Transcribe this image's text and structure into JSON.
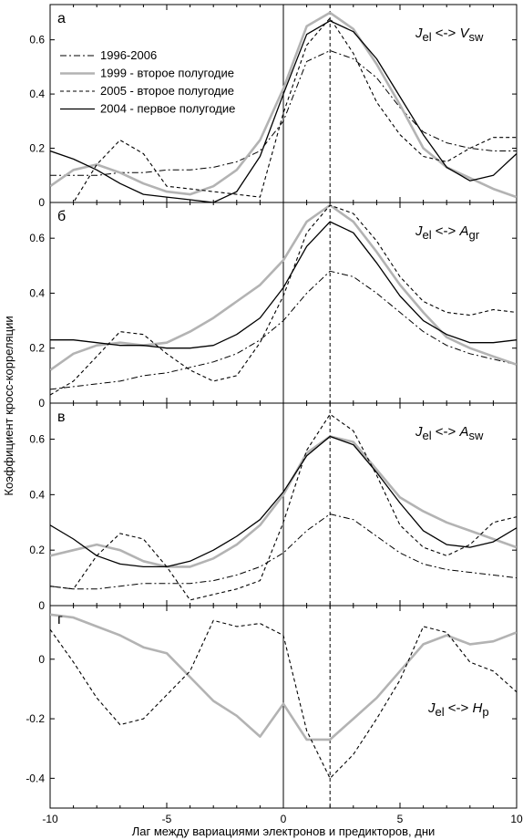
{
  "chart_data": {
    "type": "line",
    "xlabel": "Лаг между вариациями электронов и предикторов, дни",
    "ylabel": "Коэффициент кросс-корреляции",
    "xlim": [
      -10,
      10
    ],
    "x_ticks": [
      -10,
      -5,
      0,
      5,
      10
    ],
    "x_tick_labels": [
      "-10",
      "-5",
      "0",
      "5",
      "10"
    ],
    "vertical_lines": [
      {
        "x": 0,
        "style": "solid"
      },
      {
        "x": 2,
        "style": "dashed"
      }
    ],
    "series_styles": [
      {
        "key": "s1996",
        "stroke": "#000000",
        "width": 1,
        "dash": "7,3,2,3"
      },
      {
        "key": "s1999",
        "stroke": "#b3b3b3",
        "width": 2.6,
        "dash": ""
      },
      {
        "key": "s2005",
        "stroke": "#000000",
        "width": 1.1,
        "dash": "4,3"
      },
      {
        "key": "s2004",
        "stroke": "#000000",
        "width": 1.3,
        "dash": ""
      }
    ],
    "legend": {
      "placement": "upper-left of panel а",
      "entries": [
        {
          "key": "s1996",
          "label": "1996-2006"
        },
        {
          "key": "s1999",
          "label": "1999 - второе полугодие"
        },
        {
          "key": "s2005",
          "label": "2005 - второе полугодие"
        },
        {
          "key": "s2004",
          "label": "2004 - первое полугодие"
        }
      ]
    },
    "panels": [
      {
        "letter": "а",
        "title_prefix": "J",
        "title_sub": "el",
        "title_arrow": " <-> ",
        "title_var": "V",
        "title_var_sub": "sw",
        "ylim": [
          0,
          0.73
        ],
        "y_ticks": [
          0,
          0.2,
          0.4,
          0.6
        ],
        "y_tick_labels": [
          "0",
          "0.2",
          "0.4",
          "0.6"
        ],
        "x": [
          -10,
          -9,
          -8,
          -7,
          -6,
          -5,
          -4,
          -3,
          -2,
          -1,
          0,
          1,
          2,
          3,
          4,
          5,
          6,
          7,
          8,
          9,
          10
        ],
        "series": [
          {
            "key": "s1996",
            "values": [
              0.1,
              0.1,
              0.1,
              0.11,
              0.11,
              0.12,
              0.12,
              0.13,
              0.15,
              0.19,
              0.3,
              0.52,
              0.56,
              0.53,
              0.46,
              0.35,
              0.26,
              0.22,
              0.2,
              0.19,
              0.19
            ]
          },
          {
            "key": "s1999",
            "values": [
              0.06,
              0.12,
              0.14,
              0.11,
              0.07,
              0.04,
              0.03,
              0.06,
              0.12,
              0.23,
              0.42,
              0.65,
              0.7,
              0.64,
              0.51,
              0.36,
              0.2,
              0.13,
              0.09,
              0.05,
              0.02
            ]
          },
          {
            "key": "s2005",
            "values": [
              0.0,
              0.0,
              0.14,
              0.23,
              0.18,
              0.06,
              0.05,
              0.04,
              0.03,
              0.02,
              0.33,
              0.58,
              0.68,
              0.55,
              0.37,
              0.25,
              0.17,
              0.15,
              0.2,
              0.24,
              0.24
            ]
          },
          {
            "key": "s2004",
            "values": [
              0.19,
              0.16,
              0.12,
              0.07,
              0.03,
              0.02,
              0.01,
              0.0,
              0.04,
              0.17,
              0.4,
              0.62,
              0.67,
              0.63,
              0.53,
              0.39,
              0.25,
              0.13,
              0.08,
              0.1,
              0.18
            ]
          }
        ]
      },
      {
        "letter": "б",
        "title_prefix": "J",
        "title_sub": "el",
        "title_arrow": " <-> ",
        "title_var": "A",
        "title_var_sub": "gr",
        "ylim": [
          0,
          0.73
        ],
        "y_ticks": [
          0,
          0.2,
          0.4,
          0.6
        ],
        "y_tick_labels": [
          "0",
          "0.2",
          "0.4",
          "0.6"
        ],
        "x": [
          -10,
          -9,
          -8,
          -7,
          -6,
          -5,
          -4,
          -3,
          -2,
          -1,
          0,
          1,
          2,
          3,
          4,
          5,
          6,
          7,
          8,
          9,
          10
        ],
        "series": [
          {
            "key": "s1996",
            "values": [
              0.05,
              0.06,
              0.07,
              0.08,
              0.1,
              0.11,
              0.13,
              0.15,
              0.18,
              0.23,
              0.3,
              0.4,
              0.48,
              0.46,
              0.4,
              0.33,
              0.26,
              0.21,
              0.18,
              0.16,
              0.14
            ]
          },
          {
            "key": "s1999",
            "values": [
              0.12,
              0.18,
              0.21,
              0.22,
              0.21,
              0.22,
              0.26,
              0.31,
              0.37,
              0.43,
              0.52,
              0.66,
              0.72,
              0.66,
              0.55,
              0.43,
              0.33,
              0.24,
              0.2,
              0.17,
              0.14
            ]
          },
          {
            "key": "s2005",
            "values": [
              0.03,
              0.08,
              0.17,
              0.26,
              0.25,
              0.18,
              0.12,
              0.08,
              0.1,
              0.22,
              0.39,
              0.62,
              0.72,
              0.69,
              0.59,
              0.46,
              0.37,
              0.33,
              0.32,
              0.34,
              0.33
            ]
          },
          {
            "key": "s2004",
            "values": [
              0.23,
              0.23,
              0.22,
              0.21,
              0.21,
              0.2,
              0.2,
              0.21,
              0.25,
              0.31,
              0.42,
              0.57,
              0.66,
              0.62,
              0.51,
              0.39,
              0.3,
              0.25,
              0.22,
              0.22,
              0.23
            ]
          }
        ]
      },
      {
        "letter": "в",
        "title_prefix": "J",
        "title_sub": "el",
        "title_arrow": " <-> ",
        "title_var": "A",
        "title_var_sub": "sw",
        "ylim": [
          0,
          0.73
        ],
        "y_ticks": [
          0,
          0.2,
          0.4,
          0.6
        ],
        "y_tick_labels": [
          "0",
          "0.2",
          "0.4",
          "0.6"
        ],
        "x": [
          -10,
          -9,
          -8,
          -7,
          -6,
          -5,
          -4,
          -3,
          -2,
          -1,
          0,
          1,
          2,
          3,
          4,
          5,
          6,
          7,
          8,
          9,
          10
        ],
        "series": [
          {
            "key": "s1996",
            "values": [
              0.07,
              0.06,
              0.06,
              0.07,
              0.08,
              0.08,
              0.08,
              0.09,
              0.11,
              0.14,
              0.19,
              0.27,
              0.33,
              0.31,
              0.25,
              0.19,
              0.15,
              0.13,
              0.12,
              0.11,
              0.1
            ]
          },
          {
            "key": "s1999",
            "values": [
              0.18,
              0.2,
              0.22,
              0.2,
              0.16,
              0.14,
              0.14,
              0.17,
              0.22,
              0.29,
              0.4,
              0.55,
              0.61,
              0.59,
              0.49,
              0.39,
              0.34,
              0.3,
              0.27,
              0.24,
              0.21
            ]
          },
          {
            "key": "s2005",
            "values": [
              0.07,
              0.06,
              0.18,
              0.26,
              0.24,
              0.14,
              0.02,
              0.04,
              0.06,
              0.09,
              0.3,
              0.56,
              0.69,
              0.63,
              0.47,
              0.29,
              0.21,
              0.18,
              0.22,
              0.3,
              0.32
            ]
          },
          {
            "key": "s2004",
            "values": [
              0.29,
              0.24,
              0.18,
              0.15,
              0.14,
              0.14,
              0.16,
              0.2,
              0.25,
              0.31,
              0.41,
              0.54,
              0.61,
              0.58,
              0.48,
              0.37,
              0.27,
              0.22,
              0.21,
              0.23,
              0.28
            ]
          }
        ]
      },
      {
        "letter": "г",
        "title_prefix": "J",
        "title_sub": "el",
        "title_arrow": " <-> ",
        "title_var": "H",
        "title_var_sub": "p",
        "ylim": [
          -0.5,
          0.18
        ],
        "y_ticks": [
          -0.4,
          -0.2,
          0
        ],
        "y_tick_labels": [
          "-0.4",
          "-0.2",
          "0"
        ],
        "x": [
          -10,
          -9,
          -8,
          -7,
          -6,
          -5,
          -4,
          -3,
          -2,
          -1,
          0,
          1,
          2,
          3,
          4,
          5,
          6,
          7,
          8,
          9,
          10
        ],
        "series": [
          {
            "key": "s1999",
            "values": [
              0.15,
              0.14,
              0.11,
              0.08,
              0.04,
              0.02,
              -0.06,
              -0.14,
              -0.19,
              -0.26,
              -0.15,
              -0.27,
              -0.27,
              -0.2,
              -0.13,
              -0.04,
              0.05,
              0.08,
              0.05,
              0.06,
              0.09
            ]
          },
          {
            "key": "s2005",
            "values": [
              0.1,
              -0.01,
              -0.13,
              -0.22,
              -0.2,
              -0.12,
              -0.04,
              0.13,
              0.11,
              0.12,
              0.08,
              -0.24,
              -0.4,
              -0.32,
              -0.2,
              -0.07,
              0.11,
              0.09,
              -0.01,
              -0.04,
              -0.11
            ]
          }
        ]
      }
    ]
  }
}
